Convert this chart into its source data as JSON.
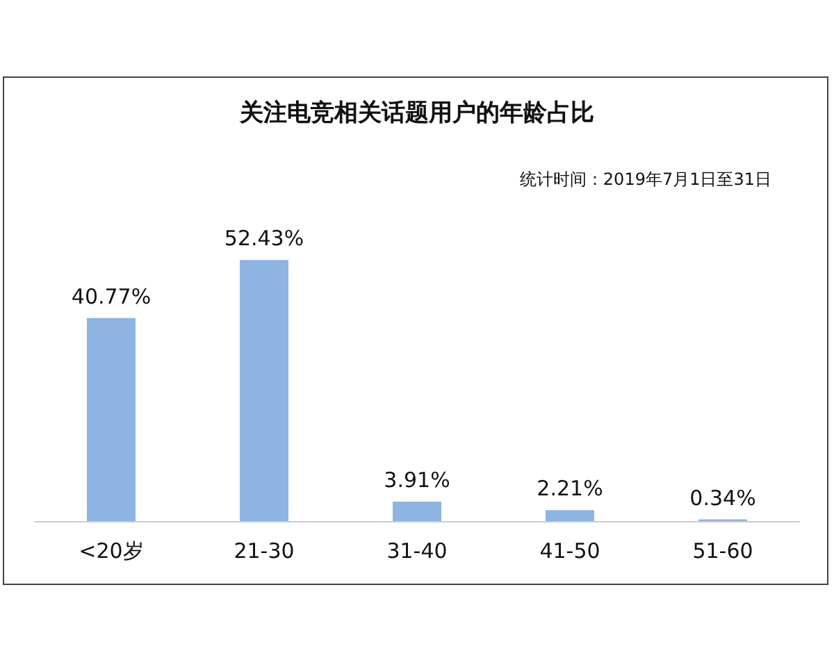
{
  "chart_data": {
    "type": "bar",
    "title": "关注电竞相关话题用户的年龄占比",
    "subtitle": "统计时间：2019年7月1日至31日",
    "categories": [
      "<20岁",
      "21-30",
      "31-40",
      "41-50",
      "51-60"
    ],
    "values": [
      40.77,
      52.43,
      3.91,
      2.21,
      0.34
    ],
    "color": "#8db4e2",
    "value_labels": [
      "40.77%",
      "52.43%",
      "3.91%",
      "2.21%",
      "0.34%"
    ],
    "tick_labels": "x"
  }
}
